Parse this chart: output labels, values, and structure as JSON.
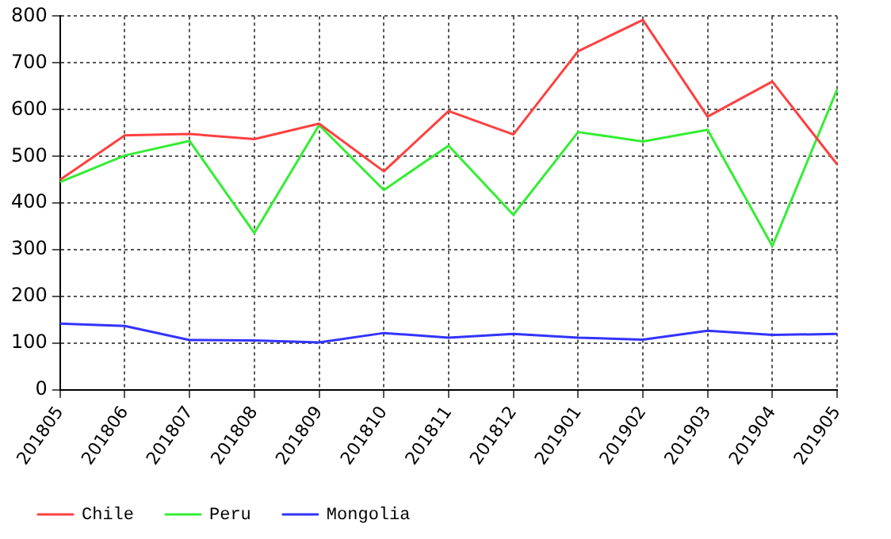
{
  "chart_data": {
    "type": "line",
    "categories": [
      "201805",
      "201806",
      "201807",
      "201808",
      "201809",
      "201810",
      "201811",
      "201812",
      "201901",
      "201902",
      "201903",
      "201904",
      "201905"
    ],
    "series": [
      {
        "name": "Chile",
        "color": "#ff4040",
        "values": [
          450,
          545,
          548,
          537,
          570,
          468,
          597,
          547,
          725,
          792,
          585,
          660,
          483
        ]
      },
      {
        "name": "Peru",
        "color": "#33ee33",
        "values": [
          445,
          502,
          533,
          336,
          567,
          428,
          523,
          375,
          552,
          532,
          557,
          308,
          643
        ]
      },
      {
        "name": "Mongolia",
        "color": "#3333ff",
        "values": [
          142,
          137,
          107,
          106,
          102,
          122,
          112,
          120,
          112,
          108,
          127,
          118,
          120
        ]
      }
    ],
    "ylim": [
      0,
      800
    ],
    "yticks": [
      0,
      100,
      200,
      300,
      400,
      500,
      600,
      700,
      800
    ],
    "grid": true,
    "legend": "bottom",
    "marker": "none",
    "line_style": "solid"
  }
}
